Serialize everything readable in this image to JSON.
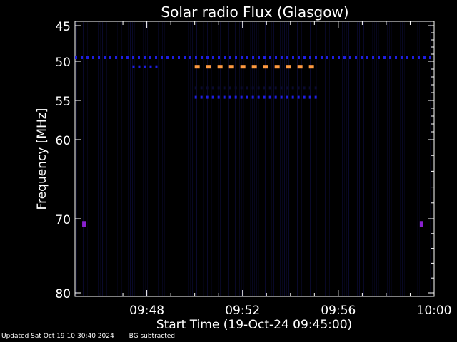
{
  "chart_data": {
    "type": "heatmap",
    "title": "Solar radio Flux (Glasgow)",
    "ylabel": "Frequency [MHz]",
    "xlabel": "Start Time (19-Oct-24 09:45:00)",
    "x_start_min": 45,
    "x_end_min": 60,
    "ylim": [
      45,
      80
    ],
    "x_ticks": [
      {
        "min": 48,
        "label": "09:48"
      },
      {
        "min": 52,
        "label": "09:52"
      },
      {
        "min": 56,
        "label": "09:56"
      },
      {
        "min": 60,
        "label": "10:00"
      }
    ],
    "y_ticks": [
      {
        "value": 45,
        "label": "45"
      },
      {
        "value": 50,
        "label": "50"
      },
      {
        "value": 55,
        "label": "55"
      },
      {
        "value": 60,
        "label": "60"
      },
      {
        "value": 70,
        "label": "70"
      },
      {
        "value": 80,
        "label": "80"
      }
    ],
    "colors": {
      "background": "#000000",
      "faint": "#0a0a2e",
      "medium": "#1e1ee0",
      "strong": "#ff9a40",
      "purple": "#8a20d0"
    },
    "emission_bands": [
      {
        "freq": 49.5,
        "t_start": 45.0,
        "t_end": 60.0,
        "level": "medium",
        "dashed": true
      },
      {
        "freq": 50.7,
        "t_start": 50.0,
        "t_end": 55.2,
        "level": "strong",
        "dashed": true
      },
      {
        "freq": 50.7,
        "t_start": 47.4,
        "t_end": 48.6,
        "level": "medium",
        "dashed": true
      },
      {
        "freq": 53.4,
        "t_start": 50.0,
        "t_end": 55.2,
        "level": "faint",
        "dashed": true
      },
      {
        "freq": 54.6,
        "t_start": 50.0,
        "t_end": 55.2,
        "level": "medium",
        "dashed": true
      },
      {
        "freq": 70.7,
        "t_start": 45.3,
        "t_end": 45.45,
        "level": "purple",
        "dashed": false
      },
      {
        "freq": 70.7,
        "t_start": 59.4,
        "t_end": 59.55,
        "level": "purple",
        "dashed": false
      }
    ]
  },
  "footer": {
    "updated": "Updated Sat Oct 19 10:30:40 2024",
    "note": "BG subtracted"
  }
}
